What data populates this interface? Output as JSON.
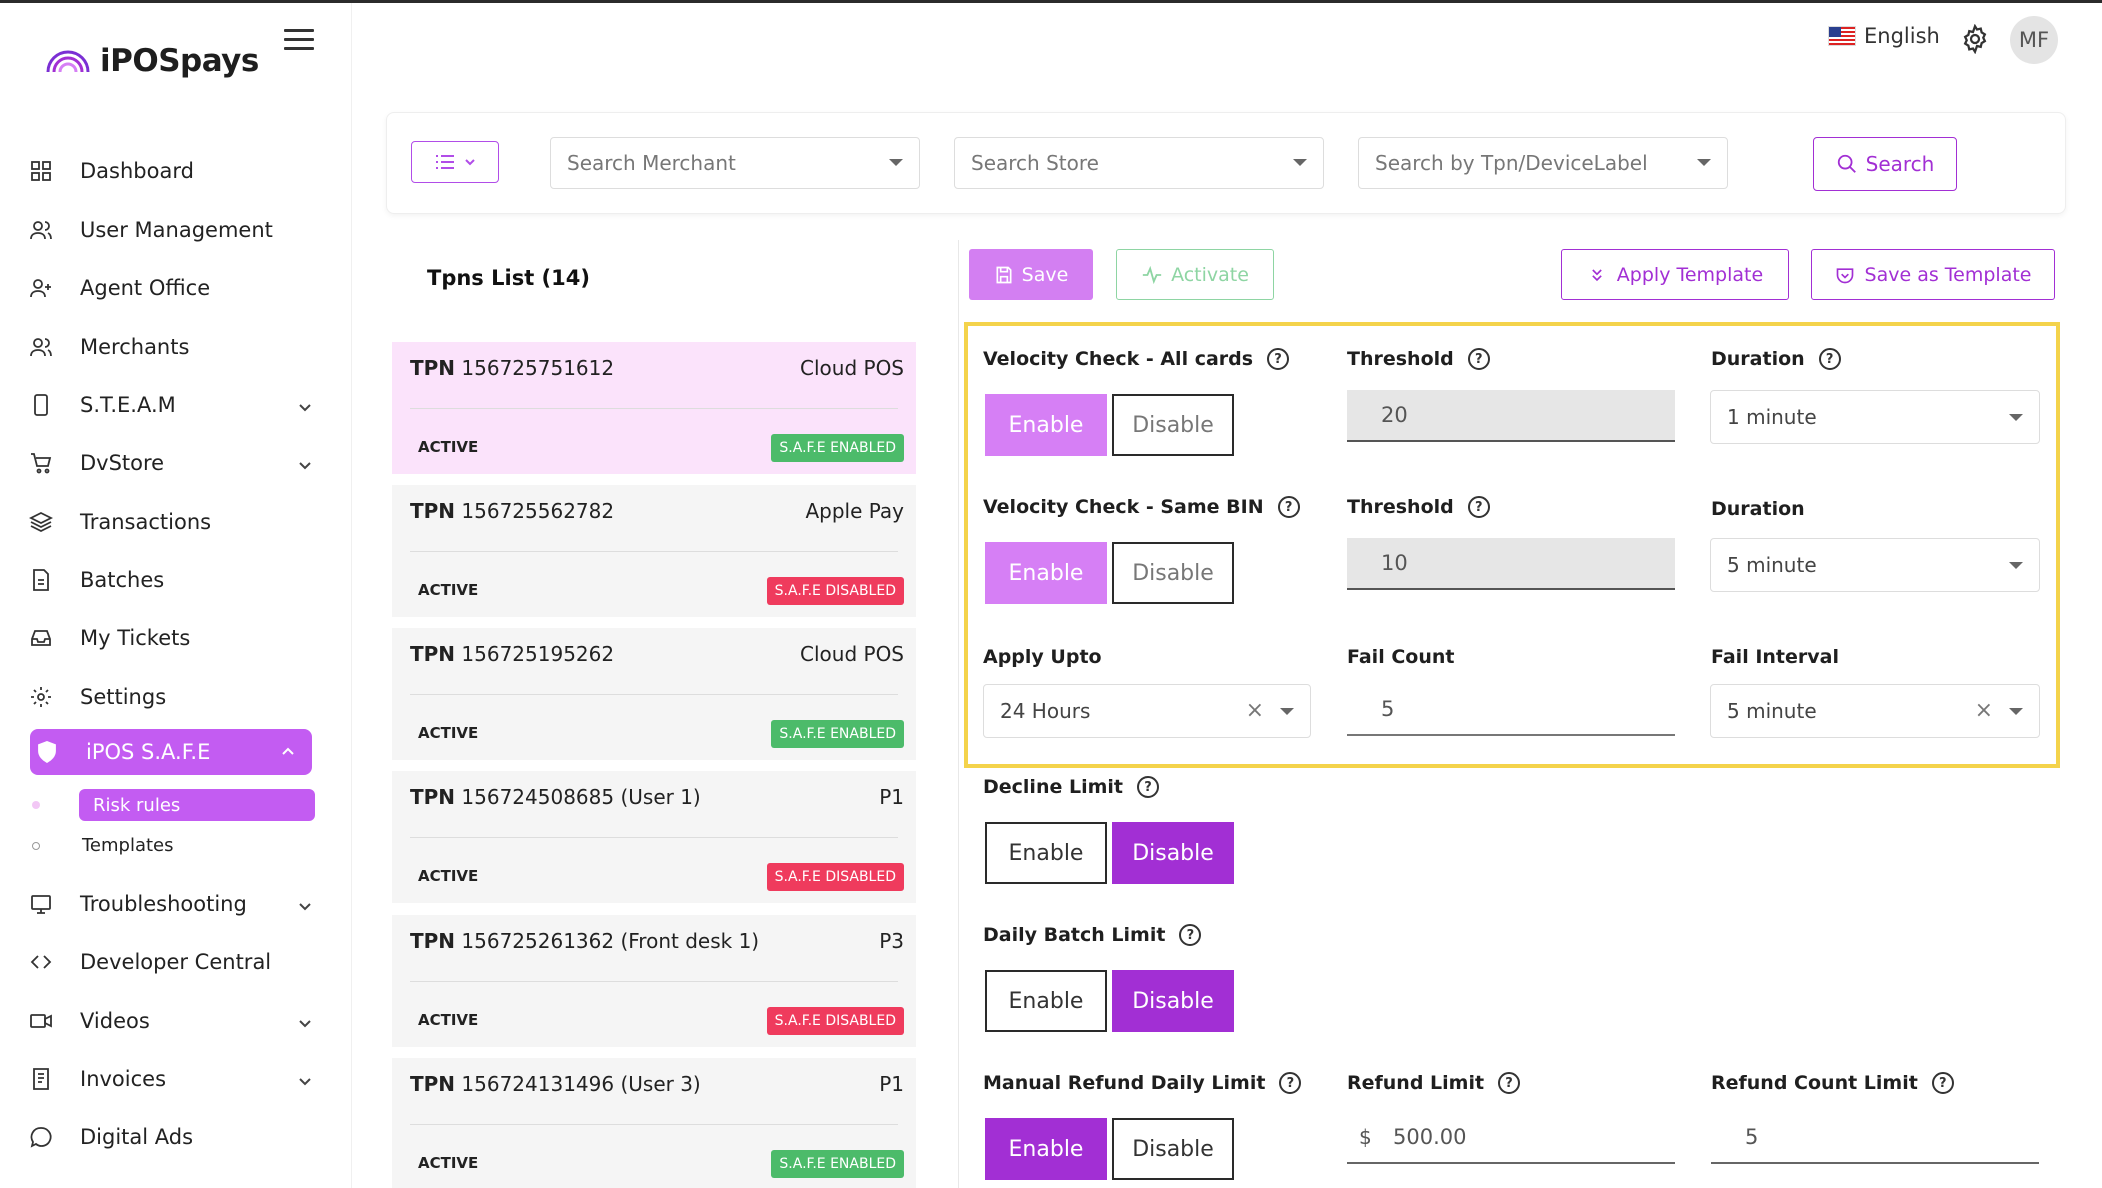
{
  "app": {
    "name": "iPOSpays"
  },
  "header": {
    "language": "English",
    "avatar_initials": "MF"
  },
  "sidebar": {
    "items": [
      {
        "label": "Dashboard",
        "icon": "grid-icon"
      },
      {
        "label": "User Management",
        "icon": "users-icon"
      },
      {
        "label": "Agent Office",
        "icon": "user-plus-icon"
      },
      {
        "label": "Merchants",
        "icon": "users-icon"
      },
      {
        "label": "S.T.E.A.M",
        "icon": "device-icon"
      },
      {
        "label": "DvStore",
        "icon": "cart-icon"
      },
      {
        "label": "Transactions",
        "icon": "layers-icon"
      },
      {
        "label": "Batches",
        "icon": "file-icon"
      },
      {
        "label": "My Tickets",
        "icon": "inbox-icon"
      },
      {
        "label": "Settings",
        "icon": "gear-icon"
      },
      {
        "label": "iPOS S.A.F.E",
        "icon": "shield-icon"
      },
      {
        "label": "Troubleshooting",
        "icon": "monitor-icon"
      },
      {
        "label": "Developer Central",
        "icon": "code-icon"
      },
      {
        "label": "Videos",
        "icon": "video-icon"
      },
      {
        "label": "Invoices",
        "icon": "invoice-icon"
      },
      {
        "label": "Digital Ads",
        "icon": "chat-icon"
      }
    ],
    "subitems": {
      "risk_rules": "Risk rules",
      "templates": "Templates"
    }
  },
  "filters": {
    "merchant_placeholder": "Search Merchant",
    "store_placeholder": "Search Store",
    "tpn_placeholder": "Search by Tpn/DeviceLabel",
    "search_label": "Search"
  },
  "tpns": {
    "title": "Tpns List (14)",
    "items": [
      {
        "prefix": "TPN",
        "id": "156725751612",
        "type": "Cloud POS",
        "status": "ACTIVE",
        "safe": "S.A.F.E ENABLED"
      },
      {
        "prefix": "TPN",
        "id": "156725562782",
        "type": "Apple Pay",
        "status": "ACTIVE",
        "safe": "S.A.F.E DISABLED"
      },
      {
        "prefix": "TPN",
        "id": "156725195262",
        "type": "Cloud POS",
        "status": "ACTIVE",
        "safe": "S.A.F.E ENABLED"
      },
      {
        "prefix": "TPN",
        "id": "156724508685 (User 1)",
        "type": "P1",
        "status": "ACTIVE",
        "safe": "S.A.F.E DISABLED"
      },
      {
        "prefix": "TPN",
        "id": "156725261362 (Front desk 1)",
        "type": "P3",
        "status": "ACTIVE",
        "safe": "S.A.F.E DISABLED"
      },
      {
        "prefix": "TPN",
        "id": "156724131496 (User 3)",
        "type": "P1",
        "status": "ACTIVE",
        "safe": "S.A.F.E ENABLED"
      }
    ]
  },
  "actions": {
    "save": "Save",
    "activate": "Activate",
    "apply_template": "Apply Template",
    "save_as_template": "Save as Template"
  },
  "rules": {
    "velocity_all": {
      "label": "Velocity Check - All cards",
      "threshold_label": "Threshold",
      "threshold": "20",
      "duration_label": "Duration",
      "duration": "1 minute"
    },
    "velocity_bin": {
      "label": "Velocity Check - Same BIN",
      "threshold_label": "Threshold",
      "threshold": "10",
      "duration_label": "Duration",
      "duration": "5 minute"
    },
    "apply_upto": {
      "label": "Apply Upto",
      "value": "24 Hours"
    },
    "fail_count": {
      "label": "Fail Count",
      "value": "5"
    },
    "fail_interval": {
      "label": "Fail Interval",
      "value": "5 minute"
    },
    "decline_limit": {
      "label": "Decline Limit"
    },
    "daily_batch_limit": {
      "label": "Daily Batch Limit"
    },
    "manual_refund": {
      "label": "Manual Refund Daily Limit",
      "refund_limit_label": "Refund Limit",
      "currency": "$",
      "refund_limit": "500.00",
      "refund_count_label": "Refund Count Limit",
      "refund_count": "5"
    }
  },
  "toggle_labels": {
    "enable": "Enable",
    "disable": "Disable"
  },
  "colors": {
    "accent": "#a22fd4",
    "accent_light": "#d67ff5",
    "highlight": "#f4d34b",
    "enabled_badge": "#4cbb6a",
    "disabled_badge": "#ef3b5d"
  }
}
